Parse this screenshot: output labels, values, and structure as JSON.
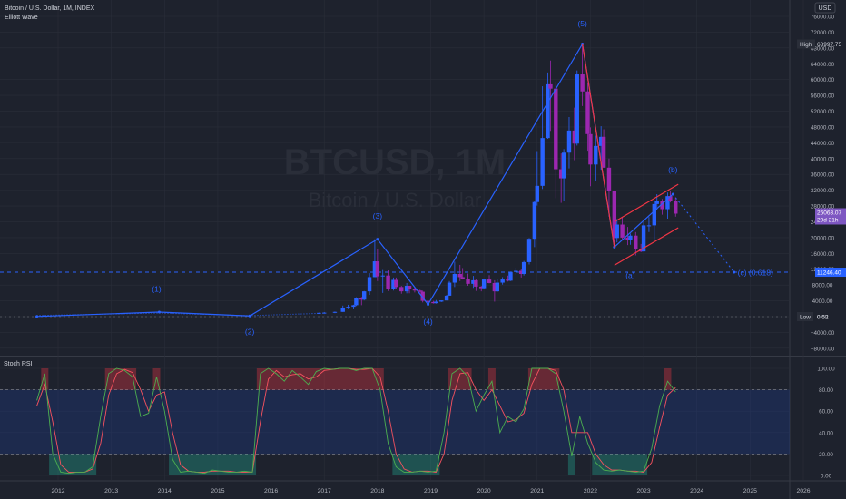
{
  "header": {
    "symbol_line": "Bitcoin / U.S. Dollar, 1M, INDEX",
    "indicator": "Elliott Wave",
    "currency_button": "USD"
  },
  "watermark": {
    "ticker": "BTCUSD, 1M",
    "name": "Bitcoin / U.S. Dollar"
  },
  "price_axis": {
    "ticks": [
      "76000.00",
      "72000.00",
      "68000.00",
      "64000.00",
      "60000.00",
      "56000.00",
      "52000.00",
      "48000.00",
      "44000.00",
      "40000.00",
      "36000.00",
      "32000.00",
      "28000.00",
      "24000.00",
      "20000.00",
      "16000.00",
      "12000.00",
      "8000.00",
      "4000.00",
      "0.00",
      "−4000.00",
      "−8000.00"
    ],
    "high_label": "High",
    "high_value": "68997.75",
    "last_price": "26063.07",
    "countdown": "29d 21h",
    "level_price": "11246.40",
    "low_label": "Low",
    "low_value": "0.52"
  },
  "rsi_axis": {
    "ticks": [
      "100.00",
      "80.00",
      "60.00",
      "40.00",
      "20.00",
      "0.00"
    ]
  },
  "time_axis": {
    "labels": [
      "2012",
      "2013",
      "2014",
      "2015",
      "2016",
      "2017",
      "2018",
      "2019",
      "2020",
      "2021",
      "2022",
      "2023",
      "2024",
      "2025",
      "2026"
    ]
  },
  "wave_labels": {
    "w1": "(1)",
    "w2": "(2)",
    "w3": "(3)",
    "w4": "(4)",
    "w5": "(5)",
    "wa": "(a)",
    "wb": "(b)",
    "wc": "(c) (0.618)"
  },
  "rsi_panel": {
    "title": "Stoch RSI"
  },
  "colors": {
    "background": "#1e222d",
    "bull": "#2962ff",
    "bear": "#9c27b0",
    "wave": "#2962ff",
    "channel": "#f23645",
    "rsi_k": "#4caf50",
    "rsi_d": "#f7525f",
    "rsi_band": "#1e3a8a",
    "price_label_bg": "#7e57c2",
    "level_label_bg": "#2962ff"
  },
  "chart_data": {
    "type": "candlestick",
    "title": "Bitcoin / U.S. Dollar, 1M, INDEX",
    "x_unit": "year",
    "y_scale": "linear",
    "ylim": [
      -9000,
      76000
    ],
    "xlim": [
      2011.5,
      2026.1
    ],
    "price_line": 11246.4,
    "last_price": 26063.07,
    "high": 68997.75,
    "low": 0.52,
    "candles": [
      {
        "t": 2016.9,
        "o": 700,
        "c": 960,
        "h": 1000,
        "l": 700
      },
      {
        "t": 2017.0,
        "o": 960,
        "c": 1000,
        "h": 1150,
        "l": 750
      },
      {
        "t": 2017.2,
        "o": 1000,
        "c": 1200,
        "h": 1300,
        "l": 900
      },
      {
        "t": 2017.35,
        "o": 1200,
        "c": 2300,
        "h": 2800,
        "l": 1200
      },
      {
        "t": 2017.45,
        "o": 2300,
        "c": 2500,
        "h": 3000,
        "l": 1900
      },
      {
        "t": 2017.55,
        "o": 2500,
        "c": 2900,
        "h": 3000,
        "l": 1850
      },
      {
        "t": 2017.6,
        "o": 2900,
        "c": 4700,
        "h": 4900,
        "l": 2700
      },
      {
        "t": 2017.7,
        "o": 4700,
        "c": 4300,
        "h": 5000,
        "l": 2900
      },
      {
        "t": 2017.75,
        "o": 4300,
        "c": 6400,
        "h": 6500,
        "l": 4100
      },
      {
        "t": 2017.85,
        "o": 6400,
        "c": 10000,
        "h": 11000,
        "l": 5500
      },
      {
        "t": 2017.95,
        "o": 10000,
        "c": 14000,
        "h": 19600,
        "l": 10000
      },
      {
        "t": 2018.0,
        "o": 14000,
        "c": 10200,
        "h": 17000,
        "l": 9000
      },
      {
        "t": 2018.1,
        "o": 10200,
        "c": 10400,
        "h": 11800,
        "l": 6000
      },
      {
        "t": 2018.2,
        "o": 10400,
        "c": 6900,
        "h": 11700,
        "l": 6500
      },
      {
        "t": 2018.3,
        "o": 6900,
        "c": 9300,
        "h": 9900,
        "l": 6600
      },
      {
        "t": 2018.35,
        "o": 9300,
        "c": 7500,
        "h": 9900,
        "l": 7000
      },
      {
        "t": 2018.45,
        "o": 7500,
        "c": 6400,
        "h": 7800,
        "l": 5800
      },
      {
        "t": 2018.55,
        "o": 6400,
        "c": 7800,
        "h": 8500,
        "l": 5900
      },
      {
        "t": 2018.6,
        "o": 7800,
        "c": 7000,
        "h": 7800,
        "l": 5900
      },
      {
        "t": 2018.7,
        "o": 7000,
        "c": 6600,
        "h": 7400,
        "l": 6100
      },
      {
        "t": 2018.8,
        "o": 6600,
        "c": 6300,
        "h": 6800,
        "l": 6100
      },
      {
        "t": 2018.85,
        "o": 6300,
        "c": 4000,
        "h": 6600,
        "l": 3600
      },
      {
        "t": 2018.95,
        "o": 4000,
        "c": 3700,
        "h": 4400,
        "l": 3100
      },
      {
        "t": 2019.05,
        "o": 3700,
        "c": 3400,
        "h": 4000,
        "l": 3300
      },
      {
        "t": 2019.1,
        "o": 3400,
        "c": 3800,
        "h": 4200,
        "l": 3300
      },
      {
        "t": 2019.2,
        "o": 3800,
        "c": 4100,
        "h": 4100,
        "l": 3700
      },
      {
        "t": 2019.3,
        "o": 4100,
        "c": 5300,
        "h": 5500,
        "l": 4100
      },
      {
        "t": 2019.35,
        "o": 5300,
        "c": 8600,
        "h": 9000,
        "l": 5300
      },
      {
        "t": 2019.45,
        "o": 8600,
        "c": 10800,
        "h": 13900,
        "l": 7500
      },
      {
        "t": 2019.55,
        "o": 10800,
        "c": 10000,
        "h": 13100,
        "l": 9000
      },
      {
        "t": 2019.6,
        "o": 10000,
        "c": 9600,
        "h": 12300,
        "l": 9400
      },
      {
        "t": 2019.7,
        "o": 9600,
        "c": 8300,
        "h": 10900,
        "l": 7800
      },
      {
        "t": 2019.8,
        "o": 8300,
        "c": 9200,
        "h": 10300,
        "l": 7300
      },
      {
        "t": 2019.85,
        "o": 9200,
        "c": 7600,
        "h": 9400,
        "l": 6500
      },
      {
        "t": 2019.95,
        "o": 7600,
        "c": 7200,
        "h": 7800,
        "l": 6400
      },
      {
        "t": 2020.0,
        "o": 7200,
        "c": 9400,
        "h": 9600,
        "l": 6900
      },
      {
        "t": 2020.1,
        "o": 9400,
        "c": 8500,
        "h": 10500,
        "l": 8400
      },
      {
        "t": 2020.2,
        "o": 8500,
        "c": 6400,
        "h": 9200,
        "l": 3800
      },
      {
        "t": 2020.25,
        "o": 6400,
        "c": 8600,
        "h": 9500,
        "l": 6200
      },
      {
        "t": 2020.35,
        "o": 8600,
        "c": 9400,
        "h": 10000,
        "l": 8100
      },
      {
        "t": 2020.45,
        "o": 9400,
        "c": 9100,
        "h": 10400,
        "l": 8900
      },
      {
        "t": 2020.5,
        "o": 9100,
        "c": 11300,
        "h": 11400,
        "l": 9000
      },
      {
        "t": 2020.6,
        "o": 11300,
        "c": 11600,
        "h": 12400,
        "l": 10600
      },
      {
        "t": 2020.7,
        "o": 11600,
        "c": 10800,
        "h": 12000,
        "l": 9900
      },
      {
        "t": 2020.75,
        "o": 10800,
        "c": 13800,
        "h": 14100,
        "l": 10400
      },
      {
        "t": 2020.85,
        "o": 13800,
        "c": 19700,
        "h": 19900,
        "l": 13200
      },
      {
        "t": 2020.95,
        "o": 19700,
        "c": 29000,
        "h": 29300,
        "l": 17600
      },
      {
        "t": 2021.0,
        "o": 29000,
        "c": 33100,
        "h": 41900,
        "l": 28100
      },
      {
        "t": 2021.1,
        "o": 33100,
        "c": 45200,
        "h": 58300,
        "l": 32300
      },
      {
        "t": 2021.2,
        "o": 45200,
        "c": 58800,
        "h": 61800,
        "l": 45000
      },
      {
        "t": 2021.25,
        "o": 58800,
        "c": 57700,
        "h": 64800,
        "l": 47000
      },
      {
        "t": 2021.35,
        "o": 57700,
        "c": 37300,
        "h": 59500,
        "l": 30000
      },
      {
        "t": 2021.45,
        "o": 37300,
        "c": 35000,
        "h": 41300,
        "l": 28800
      },
      {
        "t": 2021.5,
        "o": 35000,
        "c": 41500,
        "h": 42400,
        "l": 29300
      },
      {
        "t": 2021.6,
        "o": 41500,
        "c": 47100,
        "h": 50500,
        "l": 37500
      },
      {
        "t": 2021.7,
        "o": 47100,
        "c": 43800,
        "h": 52900,
        "l": 39600
      },
      {
        "t": 2021.75,
        "o": 43800,
        "c": 61300,
        "h": 62300,
        "l": 43300
      },
      {
        "t": 2021.85,
        "o": 61300,
        "c": 57000,
        "h": 68997.75,
        "l": 53300
      },
      {
        "t": 2021.95,
        "o": 57000,
        "c": 46200,
        "h": 59000,
        "l": 42000
      },
      {
        "t": 2022.0,
        "o": 46200,
        "c": 38500,
        "h": 47900,
        "l": 33000
      },
      {
        "t": 2022.1,
        "o": 38500,
        "c": 43200,
        "h": 45800,
        "l": 34300
      },
      {
        "t": 2022.2,
        "o": 43200,
        "c": 45500,
        "h": 48200,
        "l": 37200
      },
      {
        "t": 2022.25,
        "o": 45500,
        "c": 37700,
        "h": 47400,
        "l": 37700
      },
      {
        "t": 2022.35,
        "o": 37700,
        "c": 31800,
        "h": 40000,
        "l": 25300
      },
      {
        "t": 2022.45,
        "o": 31800,
        "c": 19900,
        "h": 31900,
        "l": 17600
      },
      {
        "t": 2022.5,
        "o": 19900,
        "c": 23300,
        "h": 24700,
        "l": 18800
      },
      {
        "t": 2022.6,
        "o": 23300,
        "c": 20000,
        "h": 25200,
        "l": 19600
      },
      {
        "t": 2022.7,
        "o": 20000,
        "c": 19400,
        "h": 22700,
        "l": 18100
      },
      {
        "t": 2022.75,
        "o": 19400,
        "c": 20500,
        "h": 21000,
        "l": 18200
      },
      {
        "t": 2022.85,
        "o": 20500,
        "c": 17100,
        "h": 21400,
        "l": 15500
      },
      {
        "t": 2022.95,
        "o": 17100,
        "c": 16500,
        "h": 18400,
        "l": 16300
      },
      {
        "t": 2023.0,
        "o": 16500,
        "c": 23100,
        "h": 23900,
        "l": 16500
      },
      {
        "t": 2023.1,
        "o": 23100,
        "c": 23100,
        "h": 25200,
        "l": 21400
      },
      {
        "t": 2023.2,
        "o": 23100,
        "c": 28500,
        "h": 29200,
        "l": 19600
      },
      {
        "t": 2023.25,
        "o": 28500,
        "c": 29200,
        "h": 31000,
        "l": 26900
      },
      {
        "t": 2023.35,
        "o": 29200,
        "c": 27200,
        "h": 29800,
        "l": 25800
      },
      {
        "t": 2023.45,
        "o": 27200,
        "c": 30500,
        "h": 31400,
        "l": 24800
      },
      {
        "t": 2023.5,
        "o": 30500,
        "c": 29200,
        "h": 31800,
        "l": 28900
      },
      {
        "t": 2023.6,
        "o": 29200,
        "c": 26063.07,
        "h": 30200,
        "l": 25300
      }
    ],
    "elliott_wave": {
      "points": [
        [
          2011.6,
          40
        ],
        [
          2013.9,
          1150
        ],
        [
          2015.6,
          170
        ],
        [
          2018.0,
          19600
        ],
        [
          2018.95,
          3100
        ],
        [
          2021.85,
          68997.75
        ],
        [
          2022.45,
          17600
        ],
        [
          2023.55,
          31000
        ],
        [
          2024.7,
          11246.4
        ]
      ],
      "labels": [
        "(1)",
        "(2)",
        "(3)",
        "(4)",
        "(5)",
        "(a)",
        "(b)",
        "(c) (0.618)"
      ]
    },
    "channel": {
      "upper": [
        [
          2022.45,
          24000
        ],
        [
          2023.65,
          33500
        ]
      ],
      "lower": [
        [
          2022.45,
          13000
        ],
        [
          2023.65,
          22500
        ]
      ],
      "descending": [
        [
          2021.85,
          68997.75
        ],
        [
          2022.45,
          17600
        ]
      ]
    },
    "stoch_rsi": {
      "ylim": [
        0,
        100
      ],
      "bands": [
        20,
        80
      ],
      "t": [
        2011.6,
        2011.75,
        2011.9,
        2012.05,
        2012.2,
        2012.35,
        2012.5,
        2012.65,
        2012.8,
        2012.95,
        2013.1,
        2013.25,
        2013.4,
        2013.55,
        2013.7,
        2013.85,
        2014.0,
        2014.15,
        2014.3,
        2014.45,
        2014.6,
        2014.75,
        2014.9,
        2015.05,
        2015.2,
        2015.35,
        2015.5,
        2015.65,
        2015.8,
        2015.95,
        2016.1,
        2016.25,
        2016.4,
        2016.55,
        2016.7,
        2016.85,
        2017.0,
        2017.15,
        2017.3,
        2017.45,
        2017.6,
        2017.75,
        2017.9,
        2018.05,
        2018.2,
        2018.35,
        2018.5,
        2018.65,
        2018.8,
        2018.95,
        2019.1,
        2019.25,
        2019.4,
        2019.55,
        2019.7,
        2019.85,
        2020.0,
        2020.15,
        2020.3,
        2020.45,
        2020.6,
        2020.75,
        2020.9,
        2021.05,
        2021.2,
        2021.35,
        2021.5,
        2021.65,
        2021.8,
        2021.95,
        2022.1,
        2022.25,
        2022.4,
        2022.55,
        2022.7,
        2022.85,
        2023.0,
        2023.15,
        2023.3,
        2023.45,
        2023.6
      ],
      "k": [
        70,
        95,
        20,
        3,
        2,
        3,
        3,
        8,
        55,
        95,
        100,
        98,
        92,
        55,
        58,
        92,
        60,
        15,
        3,
        4,
        3,
        2,
        5,
        4,
        3,
        3,
        4,
        3,
        95,
        100,
        95,
        88,
        98,
        92,
        85,
        97,
        100,
        99,
        100,
        100,
        98,
        100,
        100,
        80,
        30,
        8,
        3,
        3,
        4,
        3,
        4,
        40,
        95,
        100,
        92,
        60,
        75,
        88,
        40,
        55,
        50,
        62,
        100,
        100,
        100,
        95,
        60,
        18,
        55,
        30,
        12,
        5,
        4,
        5,
        4,
        3,
        4,
        25,
        65,
        88,
        78
      ],
      "d": [
        65,
        85,
        50,
        10,
        3,
        3,
        3,
        6,
        30,
        75,
        95,
        99,
        96,
        80,
        60,
        75,
        78,
        40,
        10,
        4,
        3,
        3,
        4,
        4,
        4,
        3,
        3,
        3,
        50,
        90,
        98,
        92,
        94,
        95,
        90,
        92,
        98,
        99,
        100,
        100,
        99,
        99,
        100,
        92,
        60,
        20,
        6,
        3,
        4,
        4,
        3,
        20,
        70,
        95,
        96,
        80,
        70,
        80,
        65,
        50,
        52,
        58,
        85,
        100,
        100,
        98,
        80,
        40,
        40,
        40,
        20,
        10,
        5,
        5,
        4,
        4,
        3,
        12,
        45,
        75,
        82
      ]
    }
  }
}
